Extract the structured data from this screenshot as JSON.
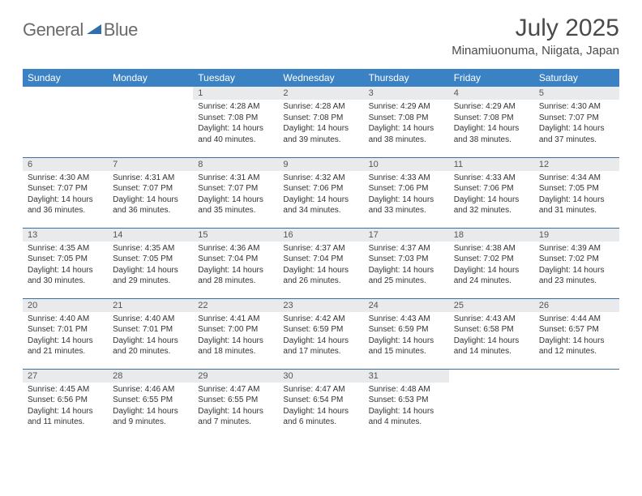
{
  "brand": {
    "text1": "General",
    "text2": "Blue",
    "shape_color": "#2f6fab"
  },
  "title": "July 2025",
  "location": "Minamiuonuma, Niigata, Japan",
  "colors": {
    "header_bg": "#3b82c4",
    "header_text": "#ffffff",
    "daynum_bg": "#e8eaec",
    "row_border": "#3b6fa0",
    "body_text": "#333333"
  },
  "fonts": {
    "title_size": 30,
    "location_size": 15,
    "th_size": 12,
    "daynum_size": 11,
    "cell_size": 10
  },
  "weekdays": [
    "Sunday",
    "Monday",
    "Tuesday",
    "Wednesday",
    "Thursday",
    "Friday",
    "Saturday"
  ],
  "weeks": [
    [
      null,
      null,
      {
        "n": "1",
        "sr": "4:28 AM",
        "ss": "7:08 PM",
        "dl": "14 hours and 40 minutes."
      },
      {
        "n": "2",
        "sr": "4:28 AM",
        "ss": "7:08 PM",
        "dl": "14 hours and 39 minutes."
      },
      {
        "n": "3",
        "sr": "4:29 AM",
        "ss": "7:08 PM",
        "dl": "14 hours and 38 minutes."
      },
      {
        "n": "4",
        "sr": "4:29 AM",
        "ss": "7:08 PM",
        "dl": "14 hours and 38 minutes."
      },
      {
        "n": "5",
        "sr": "4:30 AM",
        "ss": "7:07 PM",
        "dl": "14 hours and 37 minutes."
      }
    ],
    [
      {
        "n": "6",
        "sr": "4:30 AM",
        "ss": "7:07 PM",
        "dl": "14 hours and 36 minutes."
      },
      {
        "n": "7",
        "sr": "4:31 AM",
        "ss": "7:07 PM",
        "dl": "14 hours and 36 minutes."
      },
      {
        "n": "8",
        "sr": "4:31 AM",
        "ss": "7:07 PM",
        "dl": "14 hours and 35 minutes."
      },
      {
        "n": "9",
        "sr": "4:32 AM",
        "ss": "7:06 PM",
        "dl": "14 hours and 34 minutes."
      },
      {
        "n": "10",
        "sr": "4:33 AM",
        "ss": "7:06 PM",
        "dl": "14 hours and 33 minutes."
      },
      {
        "n": "11",
        "sr": "4:33 AM",
        "ss": "7:06 PM",
        "dl": "14 hours and 32 minutes."
      },
      {
        "n": "12",
        "sr": "4:34 AM",
        "ss": "7:05 PM",
        "dl": "14 hours and 31 minutes."
      }
    ],
    [
      {
        "n": "13",
        "sr": "4:35 AM",
        "ss": "7:05 PM",
        "dl": "14 hours and 30 minutes."
      },
      {
        "n": "14",
        "sr": "4:35 AM",
        "ss": "7:05 PM",
        "dl": "14 hours and 29 minutes."
      },
      {
        "n": "15",
        "sr": "4:36 AM",
        "ss": "7:04 PM",
        "dl": "14 hours and 28 minutes."
      },
      {
        "n": "16",
        "sr": "4:37 AM",
        "ss": "7:04 PM",
        "dl": "14 hours and 26 minutes."
      },
      {
        "n": "17",
        "sr": "4:37 AM",
        "ss": "7:03 PM",
        "dl": "14 hours and 25 minutes."
      },
      {
        "n": "18",
        "sr": "4:38 AM",
        "ss": "7:02 PM",
        "dl": "14 hours and 24 minutes."
      },
      {
        "n": "19",
        "sr": "4:39 AM",
        "ss": "7:02 PM",
        "dl": "14 hours and 23 minutes."
      }
    ],
    [
      {
        "n": "20",
        "sr": "4:40 AM",
        "ss": "7:01 PM",
        "dl": "14 hours and 21 minutes."
      },
      {
        "n": "21",
        "sr": "4:40 AM",
        "ss": "7:01 PM",
        "dl": "14 hours and 20 minutes."
      },
      {
        "n": "22",
        "sr": "4:41 AM",
        "ss": "7:00 PM",
        "dl": "14 hours and 18 minutes."
      },
      {
        "n": "23",
        "sr": "4:42 AM",
        "ss": "6:59 PM",
        "dl": "14 hours and 17 minutes."
      },
      {
        "n": "24",
        "sr": "4:43 AM",
        "ss": "6:59 PM",
        "dl": "14 hours and 15 minutes."
      },
      {
        "n": "25",
        "sr": "4:43 AM",
        "ss": "6:58 PM",
        "dl": "14 hours and 14 minutes."
      },
      {
        "n": "26",
        "sr": "4:44 AM",
        "ss": "6:57 PM",
        "dl": "14 hours and 12 minutes."
      }
    ],
    [
      {
        "n": "27",
        "sr": "4:45 AM",
        "ss": "6:56 PM",
        "dl": "14 hours and 11 minutes."
      },
      {
        "n": "28",
        "sr": "4:46 AM",
        "ss": "6:55 PM",
        "dl": "14 hours and 9 minutes."
      },
      {
        "n": "29",
        "sr": "4:47 AM",
        "ss": "6:55 PM",
        "dl": "14 hours and 7 minutes."
      },
      {
        "n": "30",
        "sr": "4:47 AM",
        "ss": "6:54 PM",
        "dl": "14 hours and 6 minutes."
      },
      {
        "n": "31",
        "sr": "4:48 AM",
        "ss": "6:53 PM",
        "dl": "14 hours and 4 minutes."
      },
      null,
      null
    ]
  ],
  "labels": {
    "sunrise": "Sunrise:",
    "sunset": "Sunset:",
    "daylight": "Daylight:"
  }
}
